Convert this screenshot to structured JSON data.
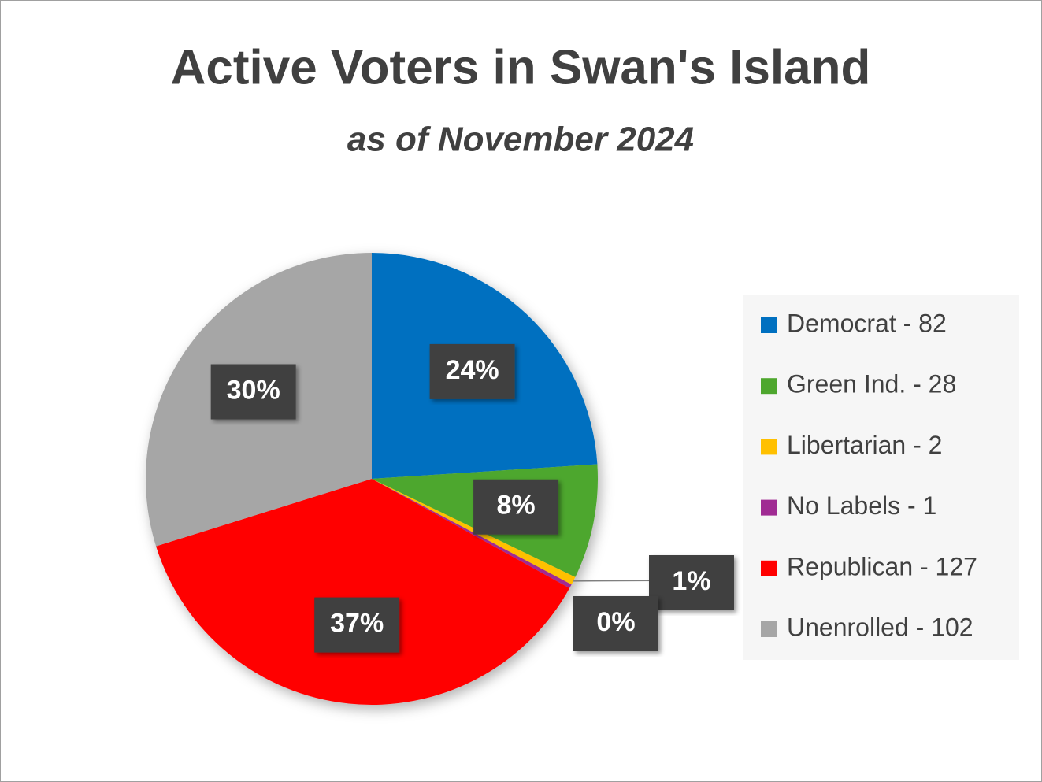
{
  "chart_data": {
    "type": "pie",
    "title": "Active Voters in Swan's Island",
    "subtitle": "as of November 2024",
    "categories": [
      "Democrat - 82",
      "Green Ind. - 28",
      "Libertarian - 2",
      "No Labels - 1",
      "Republican - 127",
      "Unenrolled - 102"
    ],
    "values": [
      82,
      28,
      2,
      1,
      127,
      102
    ],
    "value_labels": [
      "24%",
      "8%",
      "1%",
      "0%",
      "37%",
      "30%"
    ],
    "colors": [
      "#0070c0",
      "#4ea72e",
      "#ffc000",
      "#a02b93",
      "#ff0000",
      "#a6a6a6"
    ],
    "legend": "right"
  }
}
